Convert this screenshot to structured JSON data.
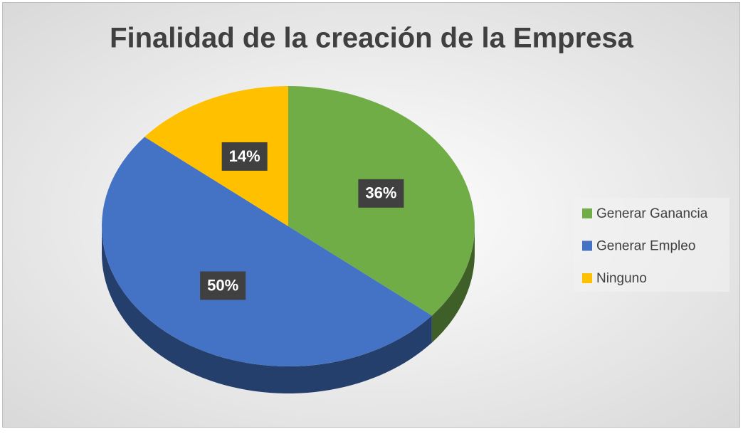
{
  "chart_data": {
    "type": "pie",
    "title": "Finalidad de la creación de la Empresa",
    "categories": [
      "Generar Ganancia",
      "Generar Empleo",
      "Ninguno"
    ],
    "values": [
      36,
      50,
      14
    ],
    "value_labels": [
      "36%",
      "50%",
      "14%"
    ],
    "colors": [
      "#70ad47",
      "#4472c4",
      "#ffc000"
    ],
    "legend": "right"
  }
}
